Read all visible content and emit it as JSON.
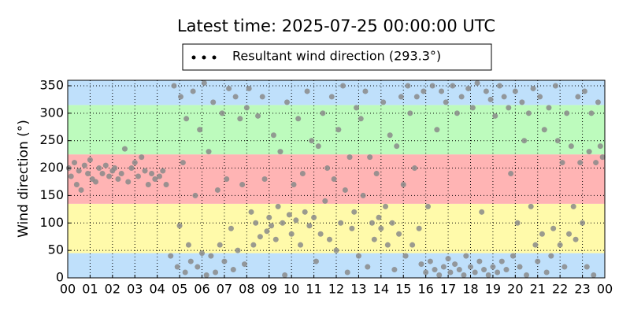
{
  "chart_data": {
    "type": "scatter",
    "title": "Latest time: 2025-07-25 00:00:00 UTC",
    "y_label": "Wind direction (°)",
    "xlim": [
      0,
      24
    ],
    "xticks": [
      {
        "value": 0,
        "label": "00"
      },
      {
        "value": 1,
        "label": "01"
      },
      {
        "value": 2,
        "label": "02"
      },
      {
        "value": 3,
        "label": "03"
      },
      {
        "value": 4,
        "label": "04"
      },
      {
        "value": 5,
        "label": "05"
      },
      {
        "value": 6,
        "label": "06"
      },
      {
        "value": 7,
        "label": "07"
      },
      {
        "value": 8,
        "label": "08"
      },
      {
        "value": 9,
        "label": "09"
      },
      {
        "value": 10,
        "label": "10"
      },
      {
        "value": 11,
        "label": "11"
      },
      {
        "value": 12,
        "label": "12"
      },
      {
        "value": 13,
        "label": "13"
      },
      {
        "value": 14,
        "label": "14"
      },
      {
        "value": 15,
        "label": "15"
      },
      {
        "value": 16,
        "label": "16"
      },
      {
        "value": 17,
        "label": "17"
      },
      {
        "value": 18,
        "label": "18"
      },
      {
        "value": 19,
        "label": "19"
      },
      {
        "value": 20,
        "label": "20"
      },
      {
        "value": 21,
        "label": "21"
      },
      {
        "value": 22,
        "label": "22"
      },
      {
        "value": 23,
        "label": "23"
      },
      {
        "value": 24,
        "label": "00"
      }
    ],
    "ylim": [
      0,
      360
    ],
    "yticks": [
      0,
      50,
      100,
      150,
      200,
      250,
      300,
      350
    ],
    "grid": true,
    "legend_position": "top",
    "legend_marker_color": "#000000",
    "bands": [
      {
        "from": 0,
        "to": 45,
        "color": "#bfe0fb"
      },
      {
        "from": 45,
        "to": 135,
        "color": "#fffaaa"
      },
      {
        "from": 135,
        "to": 225,
        "color": "#ffb4b4"
      },
      {
        "from": 225,
        "to": 315,
        "color": "#bdfbbd"
      },
      {
        "from": 315,
        "to": 360,
        "color": "#bfe0fb"
      }
    ],
    "series": [
      {
        "name": "Resultant wind direction (293.3°)",
        "color": "#8a8a8a",
        "x": [
          0.05,
          0.15,
          0.3,
          0.4,
          0.5,
          0.6,
          0.75,
          0.9,
          1.0,
          1.1,
          1.25,
          1.4,
          1.55,
          1.7,
          1.85,
          2.0,
          2.1,
          2.25,
          2.4,
          2.55,
          2.7,
          2.85,
          3.0,
          3.15,
          3.3,
          3.45,
          3.6,
          3.75,
          3.9,
          4.1,
          4.25,
          4.4,
          4.6,
          4.75,
          4.9,
          5.0,
          5.05,
          5.15,
          5.25,
          5.3,
          5.4,
          5.5,
          5.6,
          5.7,
          5.8,
          5.9,
          6.0,
          6.1,
          6.2,
          6.3,
          6.4,
          6.5,
          6.6,
          6.7,
          6.8,
          6.9,
          7.0,
          7.1,
          7.2,
          7.3,
          7.4,
          7.5,
          7.6,
          7.7,
          7.8,
          7.9,
          8.0,
          8.1,
          8.2,
          8.3,
          8.4,
          8.5,
          8.6,
          8.7,
          8.8,
          8.9,
          9.0,
          9.1,
          9.2,
          9.3,
          9.4,
          9.5,
          9.6,
          9.7,
          9.8,
          9.9,
          10.0,
          10.1,
          10.2,
          10.3,
          10.4,
          10.5,
          10.6,
          10.7,
          10.8,
          10.9,
          11.0,
          11.1,
          11.2,
          11.3,
          11.4,
          11.5,
          11.6,
          11.7,
          11.8,
          11.9,
          12.0,
          12.1,
          12.2,
          12.3,
          12.4,
          12.5,
          12.6,
          12.7,
          12.8,
          12.9,
          13.0,
          13.1,
          13.2,
          13.3,
          13.4,
          13.5,
          13.6,
          13.7,
          13.8,
          13.9,
          14.0,
          14.1,
          14.2,
          14.3,
          14.4,
          14.5,
          14.6,
          14.7,
          14.8,
          14.9,
          15.0,
          15.1,
          15.2,
          15.3,
          15.4,
          15.5,
          15.6,
          15.7,
          15.8,
          15.9,
          16.0,
          16.1,
          16.2,
          16.3,
          16.4,
          16.5,
          16.6,
          16.7,
          16.8,
          16.9,
          17.0,
          17.1,
          17.2,
          17.3,
          17.4,
          17.5,
          17.6,
          17.7,
          17.8,
          17.9,
          18.0,
          18.1,
          18.2,
          18.3,
          18.4,
          18.5,
          18.6,
          18.7,
          18.8,
          18.9,
          19.0,
          19.1,
          19.2,
          19.3,
          19.4,
          19.5,
          19.6,
          19.7,
          19.8,
          19.9,
          20.0,
          20.1,
          20.2,
          20.3,
          20.4,
          20.5,
          20.6,
          20.7,
          20.8,
          20.9,
          21.0,
          21.1,
          21.2,
          21.3,
          21.4,
          21.5,
          21.6,
          21.7,
          21.8,
          21.9,
          22.0,
          22.1,
          22.2,
          22.3,
          22.4,
          22.5,
          22.6,
          22.7,
          22.8,
          22.9,
          23.0,
          23.1,
          23.2,
          23.3,
          23.4,
          23.5,
          23.6,
          23.7,
          23.8,
          23.9
        ],
        "values": [
          200,
          185,
          210,
          170,
          195,
          160,
          205,
          190,
          215,
          180,
          175,
          200,
          190,
          205,
          185,
          195,
          200,
          180,
          190,
          235,
          175,
          200,
          210,
          185,
          220,
          195,
          170,
          190,
          180,
          185,
          195,
          170,
          40,
          350,
          20,
          95,
          330,
          210,
          10,
          290,
          60,
          30,
          340,
          150,
          20,
          270,
          45,
          355,
          5,
          230,
          40,
          320,
          10,
          160,
          60,
          300,
          30,
          180,
          345,
          90,
          15,
          330,
          50,
          290,
          170,
          25,
          310,
          345,
          120,
          60,
          100,
          295,
          75,
          330,
          180,
          85,
          110,
          95,
          260,
          70,
          130,
          230,
          100,
          5,
          320,
          115,
          80,
          170,
          105,
          290,
          60,
          190,
          120,
          340,
          95,
          250,
          110,
          30,
          240,
          80,
          300,
          140,
          200,
          70,
          330,
          180,
          50,
          270,
          100,
          350,
          160,
          10,
          220,
          90,
          120,
          310,
          40,
          290,
          150,
          340,
          20,
          220,
          100,
          70,
          190,
          110,
          90,
          320,
          130,
          60,
          260,
          100,
          15,
          240,
          80,
          330,
          170,
          40,
          350,
          300,
          60,
          200,
          330,
          90,
          25,
          340,
          10,
          130,
          30,
          350,
          15,
          270,
          5,
          340,
          20,
          320,
          35,
          10,
          350,
          25,
          300,
          15,
          330,
          5,
          40,
          345,
          20,
          310,
          10,
          355,
          30,
          120,
          15,
          340,
          5,
          325,
          20,
          295,
          10,
          350,
          30,
          330,
          15,
          310,
          190,
          40,
          340,
          100,
          20,
          320,
          250,
          5,
          300,
          130,
          345,
          60,
          30,
          330,
          80,
          270,
          10,
          310,
          40,
          90,
          350,
          250,
          60,
          210,
          20,
          300,
          80,
          240,
          130,
          70,
          330,
          210,
          100,
          340,
          20,
          230,
          300,
          5,
          210,
          320,
          240,
          220
        ]
      }
    ]
  }
}
